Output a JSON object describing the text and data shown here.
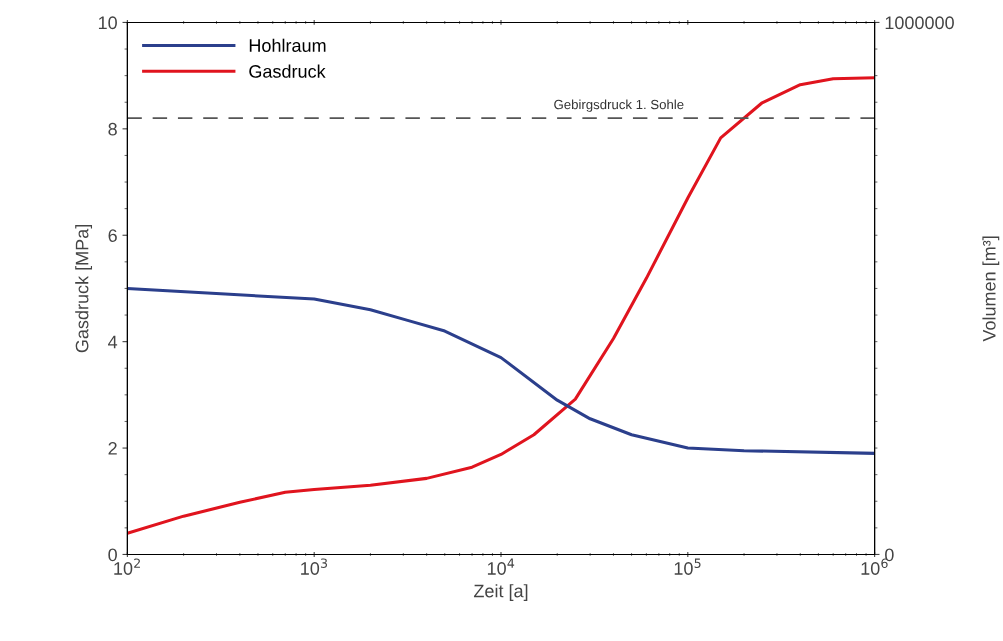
{
  "chart_data": {
    "type": "line",
    "xlabel": "Zeit [a]",
    "ylabel": "Gasdruck [MPa]",
    "y2label": "Volumen [m³]",
    "log": "x",
    "xlim": [
      100,
      1000000
    ],
    "xticks": [
      {
        "value": 100,
        "label": "10$^{2}$"
      },
      {
        "value": 1000,
        "label": "10$^{3}$"
      },
      {
        "value": 10000,
        "label": "10$^{4}$"
      },
      {
        "value": 100000,
        "label": "10$^{5}$"
      },
      {
        "value": 1000000,
        "label": "10$^{6}$"
      }
    ],
    "ylim": [
      0,
      10
    ],
    "yticks": [
      0,
      2,
      4,
      6,
      8,
      10
    ],
    "y2lim": [
      0,
      1000000
    ],
    "y2ticks": [
      0,
      1000000
    ],
    "legend": "top left",
    "grid": false,
    "line_style": "solid",
    "marker": "none",
    "ref_lines": [
      {
        "axis": "y",
        "value": 8.2,
        "label": "Gebirgsdruck 1. Sohle",
        "color": "#555555",
        "line_style": "dashed"
      }
    ],
    "series": [
      {
        "name": "Hohlraum",
        "color": "#2b3f8c",
        "axis": "y2",
        "x": [
          100,
          316,
          1000,
          2000,
          3162,
          5000,
          10000,
          20000,
          30000,
          50000,
          100000,
          200000,
          1000000
        ],
        "values": [
          500000,
          490000,
          480000,
          460000,
          440000,
          420000,
          370000,
          290000,
          255000,
          225000,
          200000,
          195000,
          190000
        ]
      },
      {
        "name": "Gasdruck",
        "color": "#e0141e",
        "x": [
          100,
          200,
          400,
          700,
          1000,
          2000,
          4000,
          7000,
          10000,
          15000,
          25000,
          40000,
          60000,
          100000,
          150000,
          250000,
          400000,
          600000,
          1000000
        ],
        "values": [
          0.4,
          0.72,
          0.98,
          1.17,
          1.22,
          1.3,
          1.43,
          1.64,
          1.88,
          2.25,
          2.92,
          4.06,
          5.19,
          6.7,
          7.83,
          8.49,
          8.83,
          8.94,
          8.96
        ]
      }
    ]
  }
}
